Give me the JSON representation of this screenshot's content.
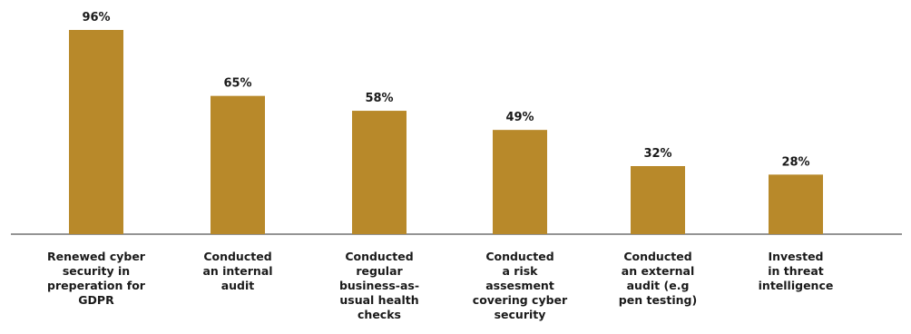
{
  "chart_data": {
    "type": "bar",
    "title": "",
    "xlabel": "",
    "ylabel": "",
    "ylim": [
      0,
      100
    ],
    "grid": false,
    "legend": "none",
    "categories": [
      [
        "Renewed cyber",
        "security in",
        "preperation for",
        "GDPR"
      ],
      [
        "Conducted",
        "an internal",
        "audit"
      ],
      [
        "Conducted",
        "regular",
        "business-as-",
        "usual health",
        "checks"
      ],
      [
        "Conducted",
        "a risk",
        "assesment",
        "covering cyber",
        "security"
      ],
      [
        "Conducted",
        "an external",
        "audit (e.g",
        "pen testing)"
      ],
      [
        "Invested",
        "in threat",
        "intelligence"
      ]
    ],
    "values": [
      96,
      65,
      58,
      49,
      32,
      28
    ],
    "value_labels": [
      "96%",
      "65%",
      "58%",
      "49%",
      "32%",
      "28%"
    ],
    "colors": {
      "bar": "#B8892A",
      "axis": "#555555",
      "text": "#1a1a1a"
    }
  }
}
